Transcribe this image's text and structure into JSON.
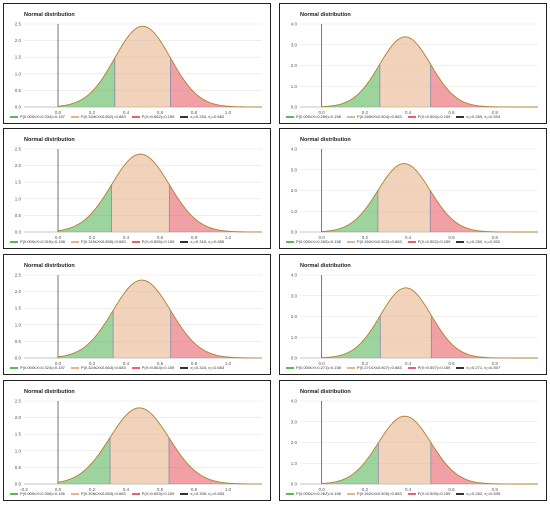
{
  "colors": {
    "left": "#5cb85c",
    "middle": "#e8b48c",
    "right": "#e8626a",
    "boundary": "#333333",
    "curve": "#b08030"
  },
  "chart_data": [
    {
      "type": "area",
      "title": "Normal distribution",
      "xlim": [
        -0.2,
        1.2
      ],
      "ylim": [
        0,
        2.5
      ],
      "yticks": [
        0,
        0.5,
        1.0,
        1.5,
        2.0,
        2.5
      ],
      "xticks": [
        0.0,
        0.2,
        0.4,
        0.6,
        0.8,
        1.0
      ],
      "mean": 0.498,
      "sd": 0.164,
      "x1": 0.334,
      "x2": 0.662,
      "legend": [
        "P(0.000≤X<0.334)=0.157",
        "P(0.334≤X≤0.662)=0.683",
        "P(X>0.662)=0.159",
        "x₁=0.334, x₂=0.662"
      ]
    },
    {
      "type": "area",
      "title": "Normal distribution",
      "xlim": [
        -0.1,
        1.0
      ],
      "ylim": [
        0,
        4.0
      ],
      "yticks": [
        0,
        1.0,
        2.0,
        3.0,
        4.0
      ],
      "xticks": [
        0.0,
        0.2,
        0.4,
        0.6,
        0.8
      ],
      "mean": 0.386,
      "sd": 0.118,
      "x1": 0.269,
      "x2": 0.504,
      "legend": [
        "P(0.000≤X<0.269)=0.158",
        "P(0.269≤X≤0.504)=0.683",
        "P(X>0.504)=0.159",
        "x₁=0.269, x₂=0.504"
      ]
    },
    {
      "type": "area",
      "title": "Normal distribution",
      "xlim": [
        -0.2,
        1.2
      ],
      "ylim": [
        0,
        2.5
      ],
      "yticks": [
        0,
        0.5,
        1.0,
        1.5,
        2.0,
        2.5
      ],
      "xticks": [
        0.0,
        0.2,
        0.4,
        0.6,
        0.8,
        1.0
      ],
      "mean": 0.485,
      "sd": 0.17,
      "x1": 0.315,
      "x2": 0.655,
      "legend": [
        "P(0.000≤X<0.315)=0.158",
        "P(0.315≤X≤0.655)=0.683",
        "P(X>0.655)=0.159",
        "x₁=0.315, x₂=0.655"
      ]
    },
    {
      "type": "area",
      "title": "Normal distribution",
      "xlim": [
        -0.1,
        1.0
      ],
      "ylim": [
        0,
        4.0
      ],
      "yticks": [
        0,
        1.0,
        2.0,
        3.0,
        4.0
      ],
      "xticks": [
        0.0,
        0.2,
        0.4,
        0.6,
        0.8
      ],
      "mean": 0.381,
      "sd": 0.121,
      "x1": 0.26,
      "x2": 0.502,
      "legend": [
        "P(0.000≤X<0.260)=0.158",
        "P(0.260≤X≤0.502)=0.683",
        "P(X>0.502)=0.159",
        "x₁=0.260, x₂=0.502"
      ]
    },
    {
      "type": "area",
      "title": "Normal distribution",
      "xlim": [
        -0.2,
        1.2
      ],
      "ylim": [
        0,
        2.5
      ],
      "yticks": [
        0,
        0.5,
        1.0,
        1.5,
        2.0,
        2.5
      ],
      "xticks": [
        0.0,
        0.2,
        0.4,
        0.6,
        0.8,
        1.0
      ],
      "mean": 0.493,
      "sd": 0.17,
      "x1": 0.324,
      "x2": 0.663,
      "legend": [
        "P(0.000≤X<0.324)=0.157",
        "P(0.324≤X≤0.663)=0.683",
        "P(X>0.663)=0.159",
        "x₁=0.324, x₂=0.663"
      ]
    },
    {
      "type": "area",
      "title": "Normal distribution",
      "xlim": [
        -0.1,
        1.0
      ],
      "ylim": [
        0,
        4.0
      ],
      "yticks": [
        0,
        1.0,
        2.0,
        3.0,
        4.0
      ],
      "xticks": [
        0.0,
        0.2,
        0.4,
        0.6,
        0.8
      ],
      "mean": 0.389,
      "sd": 0.118,
      "x1": 0.271,
      "x2": 0.507,
      "legend": [
        "P(0.000≤X<0.271)=0.158",
        "P(0.271≤X≤0.507)=0.683",
        "P(X>0.507)=0.159",
        "x₁=0.271, x₂=0.507"
      ]
    },
    {
      "type": "area",
      "title": "Normal distribution",
      "xlim": [
        -0.2,
        1.2
      ],
      "ylim": [
        0,
        2.5
      ],
      "yticks": [
        0,
        0.5,
        1.0,
        1.5,
        2.0,
        2.5
      ],
      "xticks": [
        -0.2,
        0.0,
        0.2,
        0.4,
        0.6,
        0.8,
        1.0
      ],
      "mean": 0.479,
      "sd": 0.174,
      "x1": 0.306,
      "x2": 0.653,
      "legend": [
        "P(0.000≤X<0.306)=0.156",
        "P(0.306≤X≤0.653)=0.683",
        "P(X>0.653)=0.159",
        "x₁=0.306, x₂=0.653"
      ]
    },
    {
      "type": "area",
      "title": "Normal distribution",
      "xlim": [
        -0.1,
        1.0
      ],
      "ylim": [
        0,
        4.0
      ],
      "yticks": [
        0,
        1.0,
        2.0,
        3.0,
        4.0
      ],
      "xticks": [
        0.0,
        0.2,
        0.4,
        0.6,
        0.8
      ],
      "mean": 0.384,
      "sd": 0.122,
      "x1": 0.262,
      "x2": 0.505,
      "legend": [
        "P(0.000≤X<0.262)=0.158",
        "P(0.262≤X≤0.505)=0.683",
        "P(X>0.505)=0.159",
        "x₁=0.262, x₂=0.505"
      ]
    }
  ]
}
